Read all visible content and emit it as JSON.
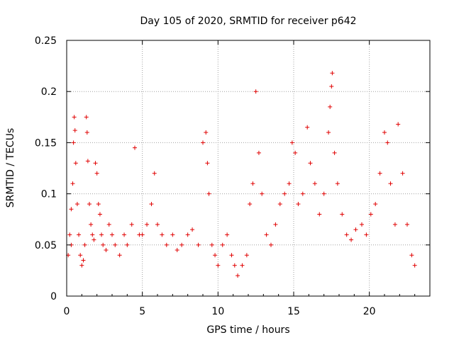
{
  "chart_data": {
    "type": "scatter",
    "title": "Day 105 of 2020, SRMTID for receiver p642",
    "xlabel": "GPS time / hours",
    "ylabel": "SRMTID / TECUs",
    "xlim": [
      0,
      24
    ],
    "ylim": [
      0,
      0.25
    ],
    "xticks": [
      0,
      5,
      10,
      15,
      20
    ],
    "xtick_labels": [
      "0",
      "5",
      "10",
      "15",
      "20"
    ],
    "yticks": [
      0,
      0.05,
      0.1,
      0.15,
      0.2,
      0.25
    ],
    "ytick_labels": [
      "0",
      "0.05",
      "0.1",
      "0.15",
      "0.2",
      "0.25"
    ],
    "grid": true,
    "marker": "+",
    "color": "#e00000",
    "series": [
      {
        "name": "SRMTID",
        "points": [
          [
            0.1,
            0.04
          ],
          [
            0.2,
            0.06
          ],
          [
            0.3,
            0.05
          ],
          [
            0.3,
            0.085
          ],
          [
            0.4,
            0.11
          ],
          [
            0.45,
            0.15
          ],
          [
            0.5,
            0.175
          ],
          [
            0.55,
            0.162
          ],
          [
            0.6,
            0.13
          ],
          [
            0.7,
            0.09
          ],
          [
            0.8,
            0.06
          ],
          [
            0.9,
            0.04
          ],
          [
            1.0,
            0.03
          ],
          [
            1.1,
            0.035
          ],
          [
            1.2,
            0.05
          ],
          [
            1.3,
            0.175
          ],
          [
            1.35,
            0.16
          ],
          [
            1.4,
            0.132
          ],
          [
            1.5,
            0.09
          ],
          [
            1.6,
            0.07
          ],
          [
            1.7,
            0.06
          ],
          [
            1.8,
            0.055
          ],
          [
            1.9,
            0.13
          ],
          [
            2.0,
            0.12
          ],
          [
            2.1,
            0.09
          ],
          [
            2.2,
            0.08
          ],
          [
            2.3,
            0.06
          ],
          [
            2.4,
            0.05
          ],
          [
            2.6,
            0.045
          ],
          [
            2.8,
            0.07
          ],
          [
            3.0,
            0.06
          ],
          [
            3.2,
            0.05
          ],
          [
            3.5,
            0.04
          ],
          [
            3.8,
            0.06
          ],
          [
            4.0,
            0.05
          ],
          [
            4.3,
            0.07
          ],
          [
            4.5,
            0.145
          ],
          [
            4.8,
            0.06
          ],
          [
            5.0,
            0.06
          ],
          [
            5.3,
            0.07
          ],
          [
            5.6,
            0.09
          ],
          [
            5.8,
            0.12
          ],
          [
            6.0,
            0.07
          ],
          [
            6.3,
            0.06
          ],
          [
            6.6,
            0.05
          ],
          [
            7.0,
            0.06
          ],
          [
            7.3,
            0.045
          ],
          [
            7.6,
            0.05
          ],
          [
            8.0,
            0.06
          ],
          [
            8.3,
            0.065
          ],
          [
            8.7,
            0.05
          ],
          [
            9.0,
            0.15
          ],
          [
            9.2,
            0.16
          ],
          [
            9.3,
            0.13
          ],
          [
            9.4,
            0.1
          ],
          [
            9.6,
            0.05
          ],
          [
            9.8,
            0.04
          ],
          [
            10.0,
            0.03
          ],
          [
            10.3,
            0.05
          ],
          [
            10.6,
            0.06
          ],
          [
            10.9,
            0.04
          ],
          [
            11.1,
            0.03
          ],
          [
            11.3,
            0.02
          ],
          [
            11.6,
            0.03
          ],
          [
            11.9,
            0.04
          ],
          [
            12.1,
            0.09
          ],
          [
            12.3,
            0.11
          ],
          [
            12.5,
            0.2
          ],
          [
            12.7,
            0.14
          ],
          [
            12.9,
            0.1
          ],
          [
            13.2,
            0.06
          ],
          [
            13.5,
            0.05
          ],
          [
            13.8,
            0.07
          ],
          [
            14.1,
            0.09
          ],
          [
            14.4,
            0.1
          ],
          [
            14.7,
            0.11
          ],
          [
            14.9,
            0.15
          ],
          [
            15.1,
            0.14
          ],
          [
            15.3,
            0.09
          ],
          [
            15.6,
            0.1
          ],
          [
            15.9,
            0.165
          ],
          [
            16.1,
            0.13
          ],
          [
            16.4,
            0.11
          ],
          [
            16.7,
            0.08
          ],
          [
            17.0,
            0.1
          ],
          [
            17.3,
            0.16
          ],
          [
            17.4,
            0.185
          ],
          [
            17.5,
            0.205
          ],
          [
            17.55,
            0.218
          ],
          [
            17.7,
            0.14
          ],
          [
            17.9,
            0.11
          ],
          [
            18.2,
            0.08
          ],
          [
            18.5,
            0.06
          ],
          [
            18.8,
            0.055
          ],
          [
            19.1,
            0.065
          ],
          [
            19.5,
            0.07
          ],
          [
            19.8,
            0.06
          ],
          [
            20.1,
            0.08
          ],
          [
            20.4,
            0.09
          ],
          [
            20.7,
            0.12
          ],
          [
            21.0,
            0.16
          ],
          [
            21.2,
            0.15
          ],
          [
            21.4,
            0.11
          ],
          [
            21.7,
            0.07
          ],
          [
            21.9,
            0.168
          ],
          [
            22.2,
            0.12
          ],
          [
            22.5,
            0.07
          ],
          [
            22.8,
            0.04
          ],
          [
            23.0,
            0.03
          ]
        ]
      }
    ]
  }
}
